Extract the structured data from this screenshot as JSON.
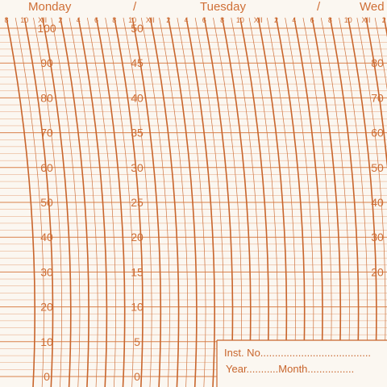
{
  "days": [
    "Monday",
    "Tuesday",
    "Wed"
  ],
  "day_separator": "/",
  "hour_labels": [
    "8",
    "10",
    "XII",
    "2",
    "4",
    "6",
    "8",
    "10",
    "XII",
    "2",
    "4",
    "6",
    "8",
    "10",
    "XII",
    "2",
    "4",
    "6",
    "8",
    "10",
    "XII",
    "2"
  ],
  "scale_left": [
    "100",
    "90",
    "80",
    "70",
    "60",
    "50",
    "40",
    "30",
    "20",
    "10",
    "0"
  ],
  "scale_middle": [
    "50",
    "45",
    "40",
    "35",
    "30",
    "25",
    "20",
    "15",
    "10",
    "5",
    "0"
  ],
  "scale_right": [
    "80",
    "70",
    "60",
    "50",
    "40",
    "30",
    "20"
  ],
  "form": {
    "inst_no": "Inst. No......................................",
    "year_month": "Year...........Month................"
  },
  "colors": {
    "ink": "#cf6f36",
    "paper": "#fbf7f1"
  }
}
